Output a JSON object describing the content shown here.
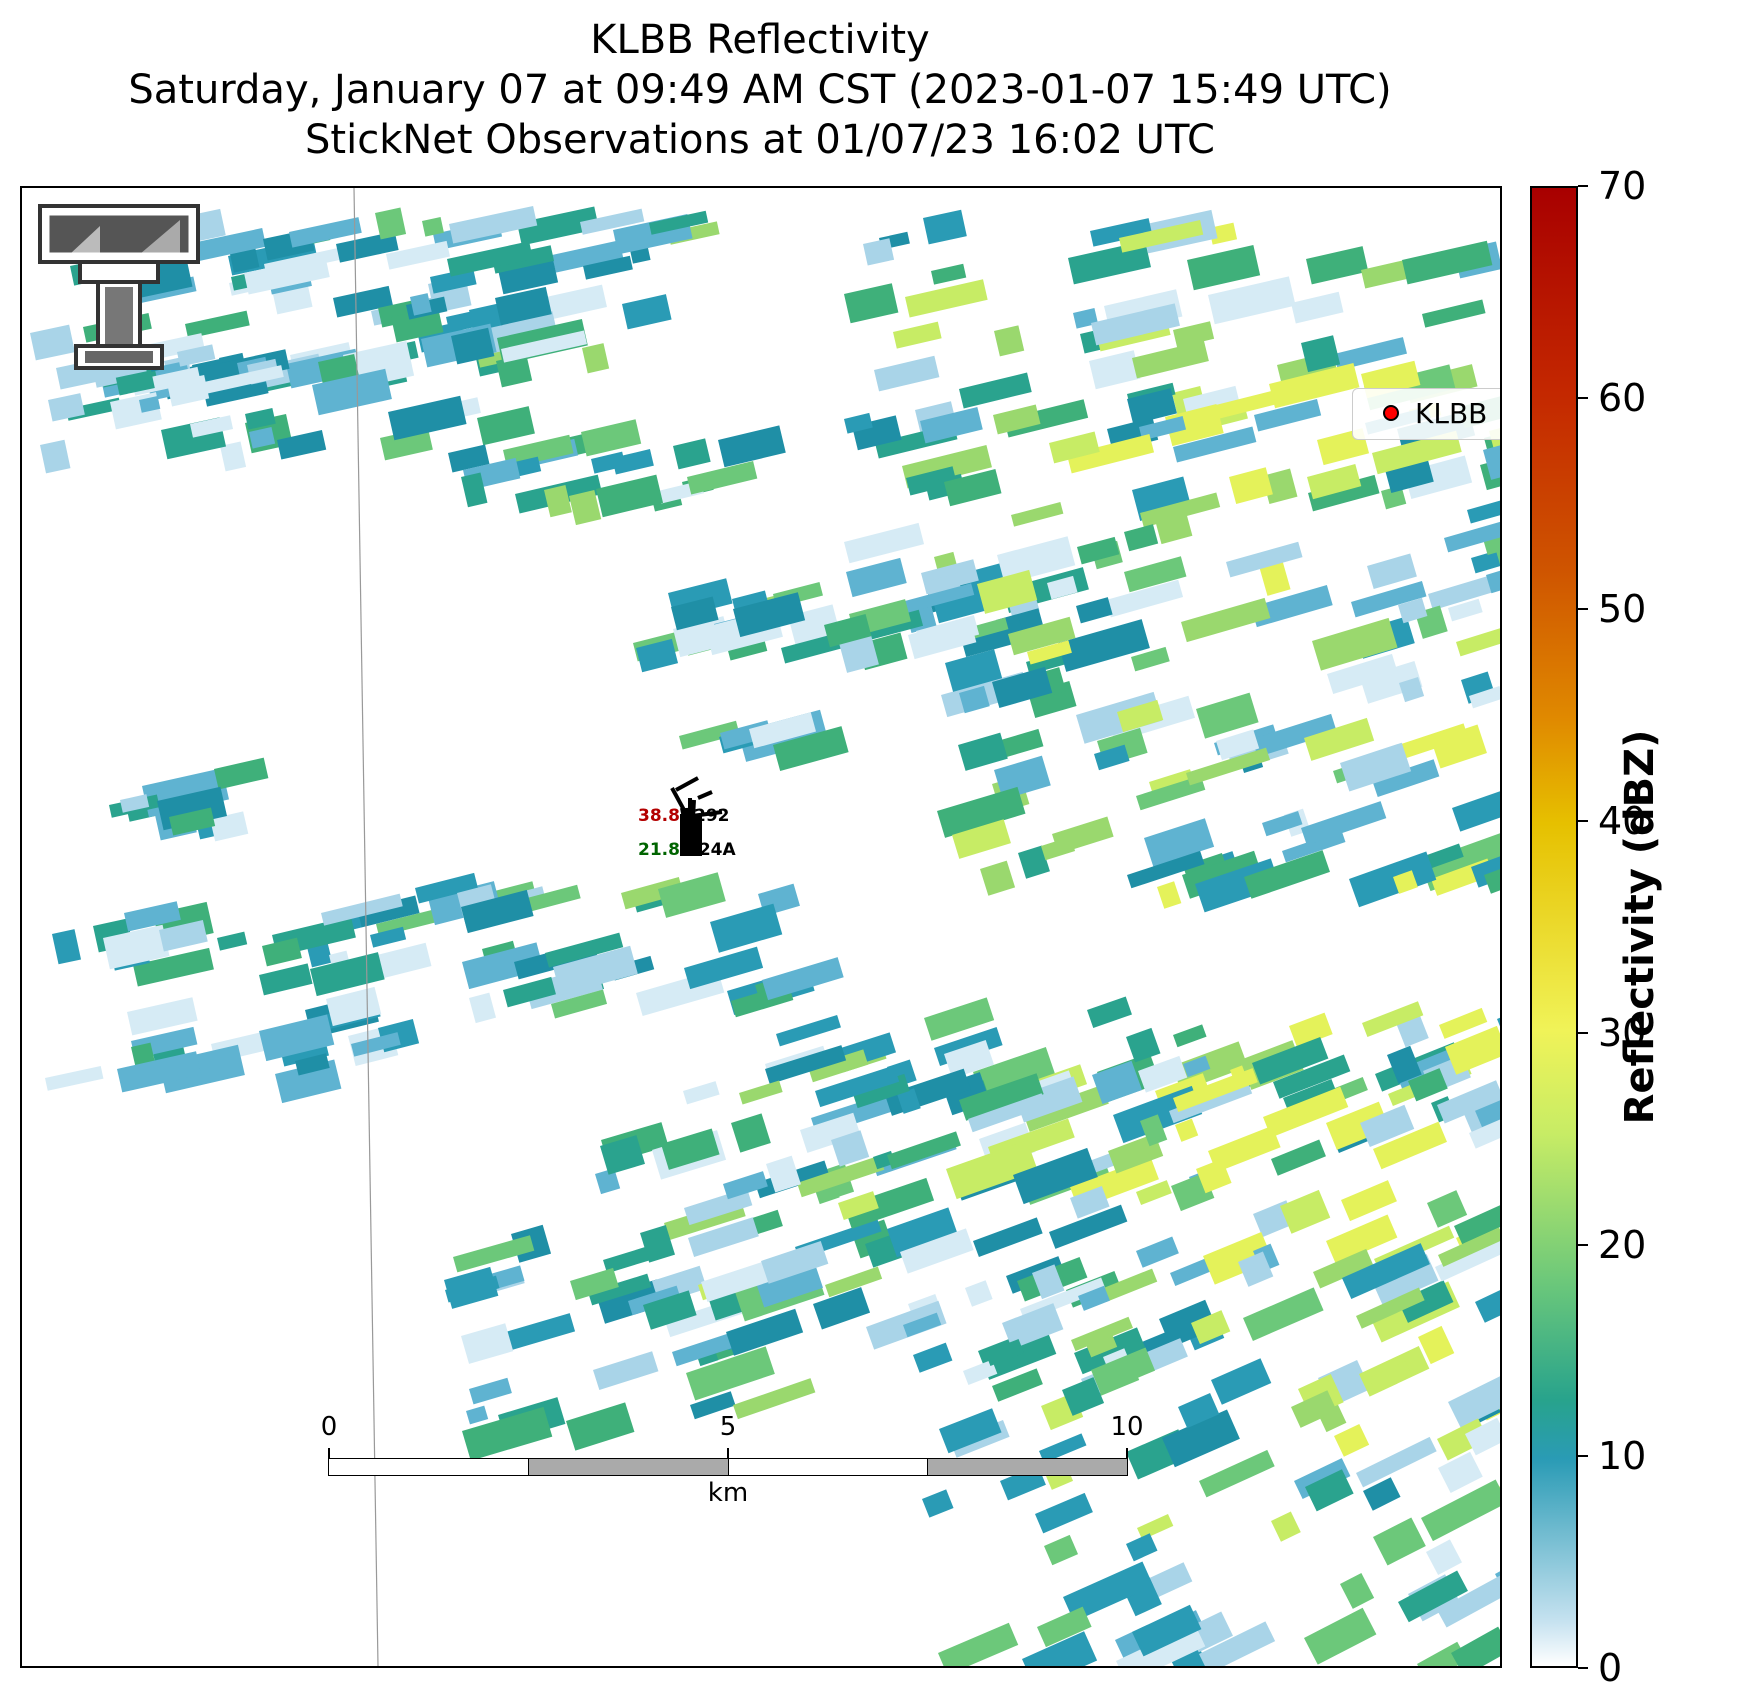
{
  "title": {
    "line1": "KLBB Reflectivity",
    "line2": "Saturday, January 07 at 09:49 AM CST (2023-01-07 15:49 UTC)",
    "line3": "StickNet Observations at 01/07/23 16:02 UTC"
  },
  "legend": {
    "label": "KLBB",
    "color": "#ff0000"
  },
  "colorbar": {
    "label": "Reflectivity (dBZ)",
    "ticks": [
      "0",
      "10",
      "20",
      "30",
      "40",
      "50",
      "60",
      "70"
    ],
    "min": 0,
    "max": 70
  },
  "scalebar": {
    "ticks": [
      "0",
      "5",
      "10"
    ],
    "unit": "km"
  },
  "stations": [
    {
      "id": "292",
      "temp": "38.8",
      "temp_color": "#b30000"
    },
    {
      "id": "224A",
      "dewpoint": "21.8",
      "dewpoint_color": "#006400"
    }
  ],
  "logo": {
    "name": "texas-tech-double-t-logo"
  }
}
